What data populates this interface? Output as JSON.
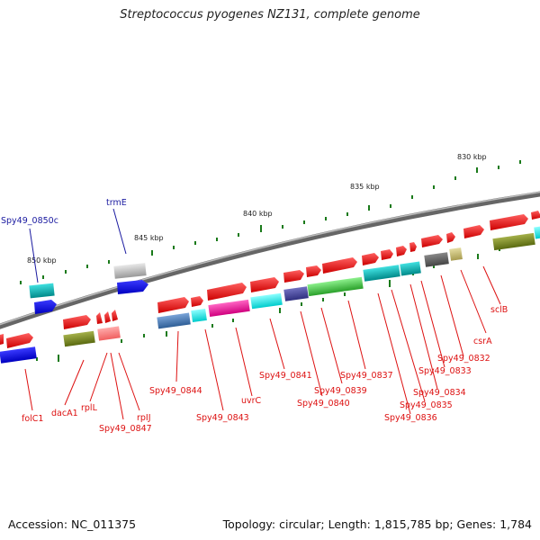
{
  "title": "Streptococcus pyogenes NZ131, complete genome",
  "accession": "Accession: NC_011375",
  "topology": "Topology: circular; Length: 1,815,785 bp; Genes: 1,784",
  "ticks": [
    "830 kbp",
    "835 kbp",
    "840 kbp",
    "845 kbp",
    "850 kbp"
  ],
  "genes_above": [
    "Spy49_0850c",
    "trmE"
  ],
  "genes_below": [
    "folC1",
    "dacA1",
    "rplL",
    "Spy49_0847",
    "rpIJ",
    "Spy49_0844",
    "Spy49_0843",
    "uvrC",
    "Spy49_0841",
    "Spy49_0840",
    "Spy49_0839",
    "Spy49_0837",
    "Spy49_0836",
    "Spy49_0835",
    "Spy49_0834",
    "Spy49_0833",
    "Spy49_0832",
    "csrA",
    "sclB"
  ],
  "colors": {
    "backbone": "#808080",
    "forward_arrow": "#ff1a1a",
    "above_label": "#1a1aa0",
    "below_label": "#dd1111",
    "tick": "#1a7a1a",
    "tick_label": "#222222"
  }
}
